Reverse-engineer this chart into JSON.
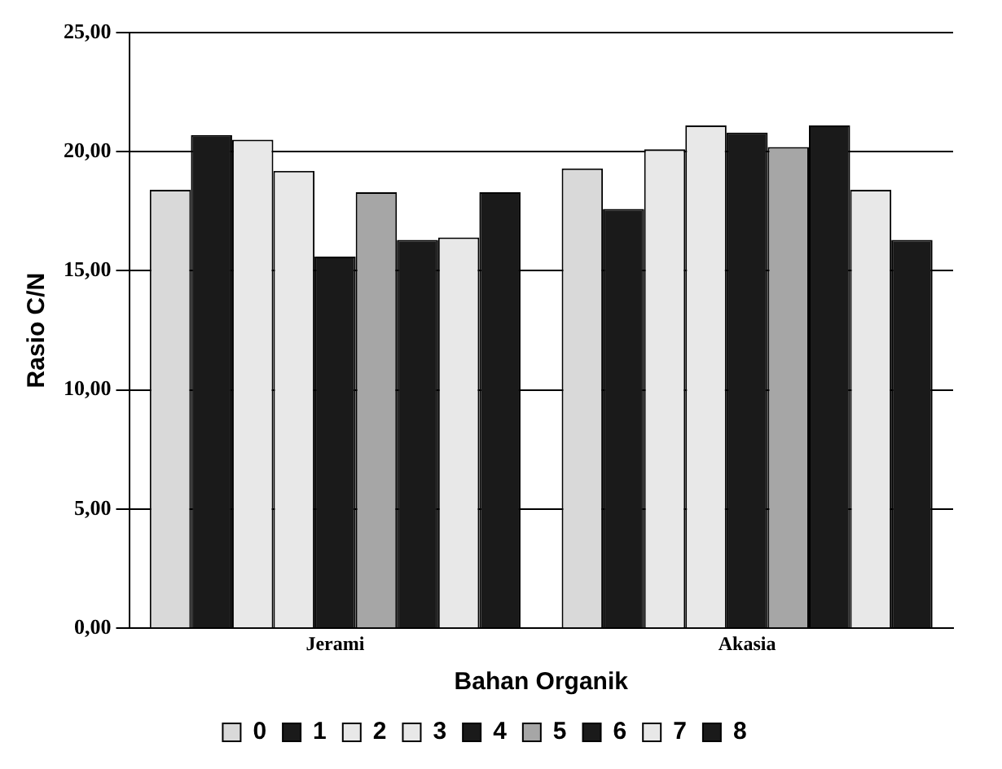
{
  "chart_data": {
    "type": "bar",
    "xlabel": "Bahan Organik",
    "ylabel": "Rasio C/N",
    "categories": [
      "Jerami",
      "Akasia"
    ],
    "series": [
      {
        "name": "0",
        "color": "#d9d9d9",
        "values": [
          18.4,
          19.3
        ]
      },
      {
        "name": "1",
        "color": "#1a1a1a",
        "values": [
          20.7,
          17.6
        ]
      },
      {
        "name": "2",
        "color": "#e8e8e8",
        "values": [
          20.5,
          20.1
        ]
      },
      {
        "name": "3",
        "color": "#e8e8e8",
        "values": [
          19.2,
          21.1
        ]
      },
      {
        "name": "4",
        "color": "#1a1a1a",
        "values": [
          15.6,
          20.8
        ]
      },
      {
        "name": "5",
        "color": "#a6a6a6",
        "values": [
          18.3,
          20.2
        ]
      },
      {
        "name": "6",
        "color": "#1a1a1a",
        "values": [
          16.3,
          21.1
        ]
      },
      {
        "name": "7",
        "color": "#e8e8e8",
        "values": [
          16.4,
          18.4
        ]
      },
      {
        "name": "8",
        "color": "#1a1a1a",
        "values": [
          18.3,
          16.3
        ]
      }
    ],
    "ylim": [
      0,
      25
    ],
    "yticks": [
      {
        "value": 0,
        "label": "0,00"
      },
      {
        "value": 5,
        "label": "5,00"
      },
      {
        "value": 10,
        "label": "10,00"
      },
      {
        "value": 15,
        "label": "15,00"
      },
      {
        "value": 20,
        "label": "20,00"
      },
      {
        "value": 25,
        "label": "25,00"
      }
    ],
    "grid": "y",
    "legend": "bottom"
  }
}
